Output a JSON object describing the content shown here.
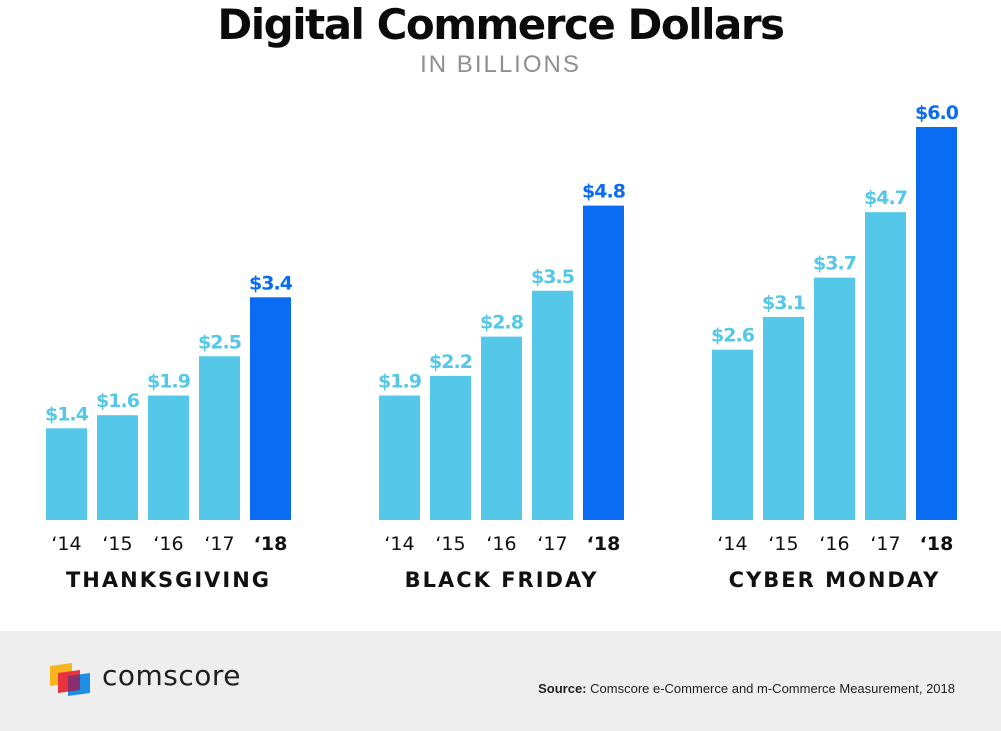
{
  "header": {
    "title": "Digital Commerce Dollars",
    "subtitle": "IN BILLIONS"
  },
  "colors": {
    "bar": "#55c8ea",
    "highlight": "#0a6cf2",
    "text": "#111111"
  },
  "chart_data": [
    {
      "type": "bar",
      "title": "THANKSGIVING",
      "categories": [
        "‘14",
        "‘15",
        "‘16",
        "‘17",
        "‘18"
      ],
      "values": [
        1.4,
        1.6,
        1.9,
        2.5,
        3.4
      ],
      "labels": [
        "$1.4",
        "$1.6",
        "$1.9",
        "$2.5",
        "$3.4"
      ],
      "highlight_index": 4
    },
    {
      "type": "bar",
      "title": "BLACK FRIDAY",
      "categories": [
        "‘14",
        "‘15",
        "‘16",
        "‘17",
        "‘18"
      ],
      "values": [
        1.9,
        2.2,
        2.8,
        3.5,
        4.8
      ],
      "labels": [
        "$1.9",
        "$2.2",
        "$2.8",
        "$3.5",
        "$4.8"
      ],
      "highlight_index": 4
    },
    {
      "type": "bar",
      "title": "CYBER MONDAY",
      "categories": [
        "‘14",
        "‘15",
        "‘16",
        "‘17",
        "‘18"
      ],
      "values": [
        2.6,
        3.1,
        3.7,
        4.7,
        6.0
      ],
      "labels": [
        "$2.6",
        "$3.1",
        "$3.7",
        "$4.7",
        "$6.0"
      ],
      "highlight_index": 4
    }
  ],
  "footer": {
    "brand": "comscore",
    "source_label": "Source:",
    "source_text": "Comscore e-Commerce and m-Commerce Measurement, 2018"
  }
}
